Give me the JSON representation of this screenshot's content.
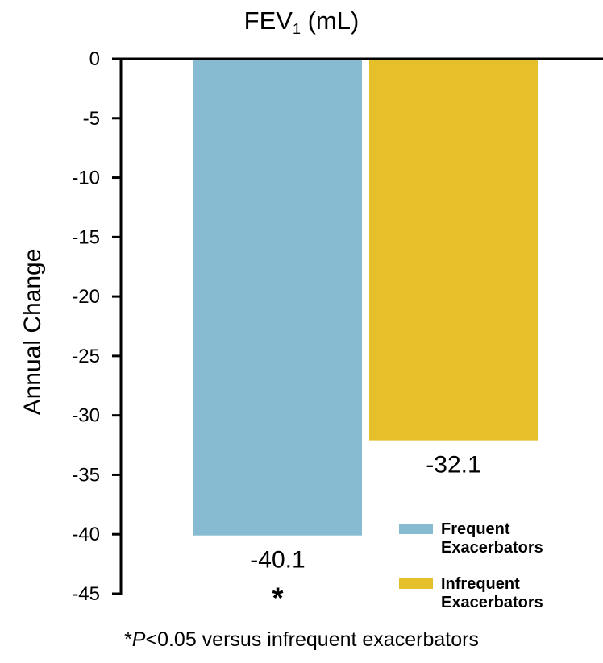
{
  "chart_data": {
    "type": "bar",
    "title": {
      "main": "FEV",
      "subscript": "1",
      "suffix": " (mL)"
    },
    "ylabel": "Annual Change",
    "xlabel": "",
    "ylim": [
      -45,
      0
    ],
    "yticks": [
      0,
      -5,
      -10,
      -15,
      -20,
      -25,
      -30,
      -35,
      -40,
      -45
    ],
    "grid": false,
    "legend_position": "bottom-right",
    "series": [
      {
        "name": "Frequent Exacerbators",
        "legend_lines": [
          "Frequent",
          "Exacerbators"
        ],
        "value": -40.1,
        "label": "-40.1",
        "significance": "*",
        "color": "#86bbd2"
      },
      {
        "name": "Infrequent Exacerbators",
        "legend_lines": [
          "Infrequent",
          "Exacerbators"
        ],
        "value": -32.1,
        "label": "-32.1",
        "significance": "",
        "color": "#e5c02a"
      }
    ],
    "footnote": {
      "marker": "*",
      "p_letter": "P",
      "text": "<0.05 versus infrequent exacerbators"
    }
  }
}
